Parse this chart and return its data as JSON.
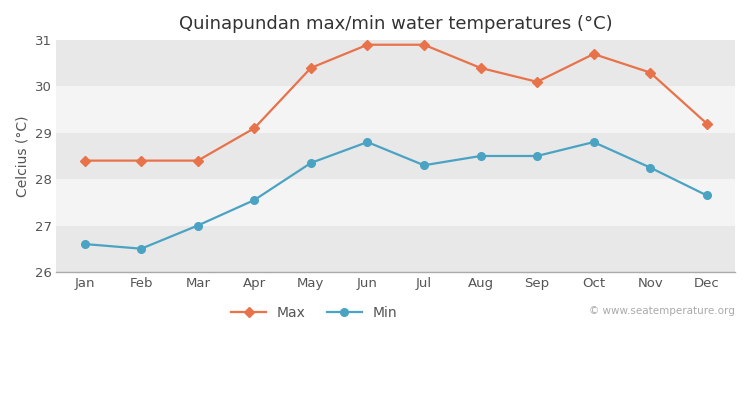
{
  "months": [
    "Jan",
    "Feb",
    "Mar",
    "Apr",
    "May",
    "Jun",
    "Jul",
    "Aug",
    "Sep",
    "Oct",
    "Nov",
    "Dec"
  ],
  "max_temps": [
    28.4,
    28.4,
    28.4,
    29.1,
    30.4,
    30.9,
    30.9,
    30.4,
    30.1,
    30.7,
    30.3,
    29.2
  ],
  "min_temps": [
    26.6,
    26.5,
    27.0,
    27.55,
    28.35,
    28.8,
    28.3,
    28.5,
    28.5,
    28.8,
    28.25,
    27.65
  ],
  "title": "Quinapundan max/min water temperatures (°C)",
  "ylabel": "Celcius (°C)",
  "ylim": [
    26,
    31
  ],
  "yticks": [
    26,
    27,
    28,
    29,
    30,
    31
  ],
  "max_color": "#e8724a",
  "min_color": "#4ba3c3",
  "fig_bg_color": "#ffffff",
  "plot_bg_color": "#ffffff",
  "band_color_dark": "#e8e8e8",
  "band_color_light": "#f4f4f4",
  "spine_color": "#aaaaaa",
  "legend_max": "Max",
  "legend_min": "Min",
  "watermark": "© www.seatemperature.org",
  "title_fontsize": 13,
  "label_fontsize": 10,
  "tick_fontsize": 9.5
}
